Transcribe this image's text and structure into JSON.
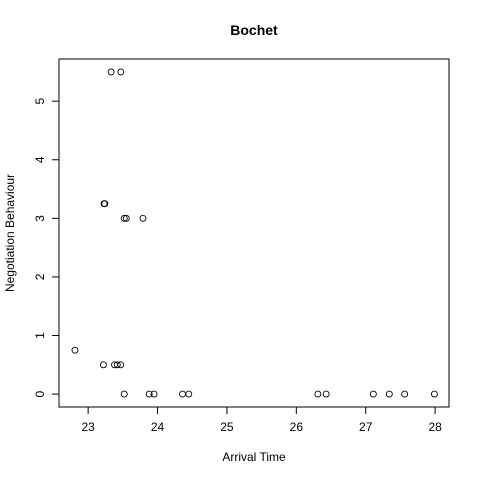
{
  "chart_data": {
    "type": "scatter",
    "title": "Bochet",
    "xlabel": "Arrival Time",
    "ylabel": "Negotiation Behaviour",
    "xlim": [
      22.58,
      28.2
    ],
    "ylim": [
      -0.22,
      5.72
    ],
    "xticks": [
      23,
      24,
      25,
      26,
      27,
      28
    ],
    "yticks": [
      0,
      1,
      2,
      3,
      4,
      5
    ],
    "grid": false,
    "legend": "none",
    "points": [
      {
        "x": 23.33,
        "y": 5.5
      },
      {
        "x": 23.47,
        "y": 5.5
      },
      {
        "x": 23.23,
        "y": 3.25
      },
      {
        "x": 23.24,
        "y": 3.25
      },
      {
        "x": 23.52,
        "y": 3.0
      },
      {
        "x": 23.55,
        "y": 3.0
      },
      {
        "x": 23.79,
        "y": 3.0
      },
      {
        "x": 22.81,
        "y": 0.75
      },
      {
        "x": 23.22,
        "y": 0.5
      },
      {
        "x": 23.38,
        "y": 0.5
      },
      {
        "x": 23.42,
        "y": 0.5
      },
      {
        "x": 23.47,
        "y": 0.5
      },
      {
        "x": 23.52,
        "y": 0.0
      },
      {
        "x": 23.88,
        "y": 0.0
      },
      {
        "x": 23.95,
        "y": 0.0
      },
      {
        "x": 24.36,
        "y": 0.0
      },
      {
        "x": 24.45,
        "y": 0.0
      },
      {
        "x": 26.31,
        "y": 0.0
      },
      {
        "x": 26.43,
        "y": 0.0
      },
      {
        "x": 27.11,
        "y": 0.0
      },
      {
        "x": 27.34,
        "y": 0.0
      },
      {
        "x": 27.56,
        "y": 0.0
      },
      {
        "x": 27.99,
        "y": 0.0
      }
    ]
  }
}
